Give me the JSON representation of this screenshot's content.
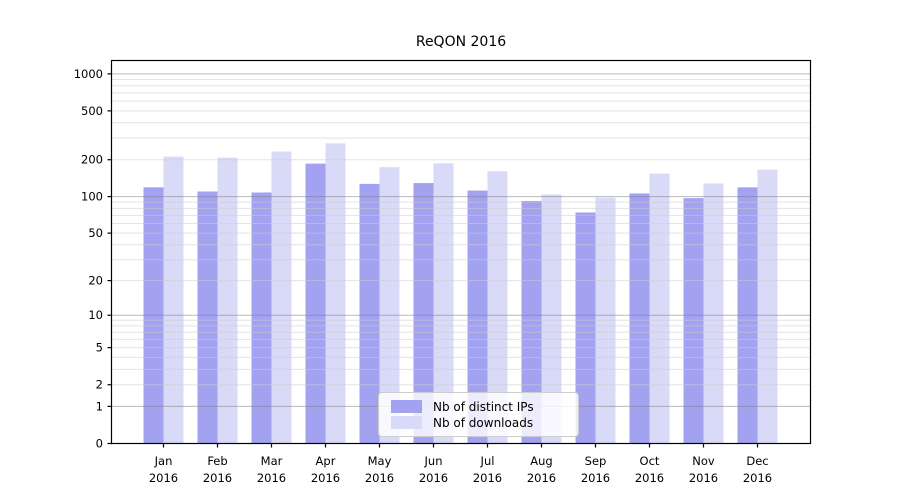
{
  "title": "ReQON 2016",
  "colors": {
    "ips_bar": "#a2a2f0",
    "downloads_bar": "#d9d9f8",
    "major_grid": "rgba(130,130,130,0.55)",
    "minor_grid": "rgba(205,205,205,0.55)",
    "axis": "#000000",
    "legend_border": "#cccccc"
  },
  "chart_data": {
    "type": "bar",
    "title": "ReQON 2016",
    "xlabel": "",
    "ylabel": "",
    "yscale": "log1p",
    "grid": true,
    "legend_position": "lower center",
    "ylim": [
      0,
      1280
    ],
    "yticks": [
      0,
      1,
      2,
      5,
      10,
      20,
      50,
      100,
      200,
      500,
      1000
    ],
    "categories": [
      "Jan 2016",
      "Feb 2016",
      "Mar 2016",
      "Apr 2016",
      "May 2016",
      "Jun 2016",
      "Jul 2016",
      "Aug 2016",
      "Sep 2016",
      "Oct 2016",
      "Nov 2016",
      "Dec 2016"
    ],
    "series": [
      {
        "name": "Nb of distinct IPs",
        "color": "#a2a2f0",
        "values": [
          119,
          110,
          108,
          186,
          127,
          129,
          112,
          92,
          74,
          106,
          97,
          119
        ]
      },
      {
        "name": "Nb of downloads",
        "color": "#d9d9f8",
        "values": [
          212,
          208,
          233,
          272,
          174,
          187,
          161,
          104,
          98,
          154,
          128,
          166
        ]
      }
    ]
  }
}
